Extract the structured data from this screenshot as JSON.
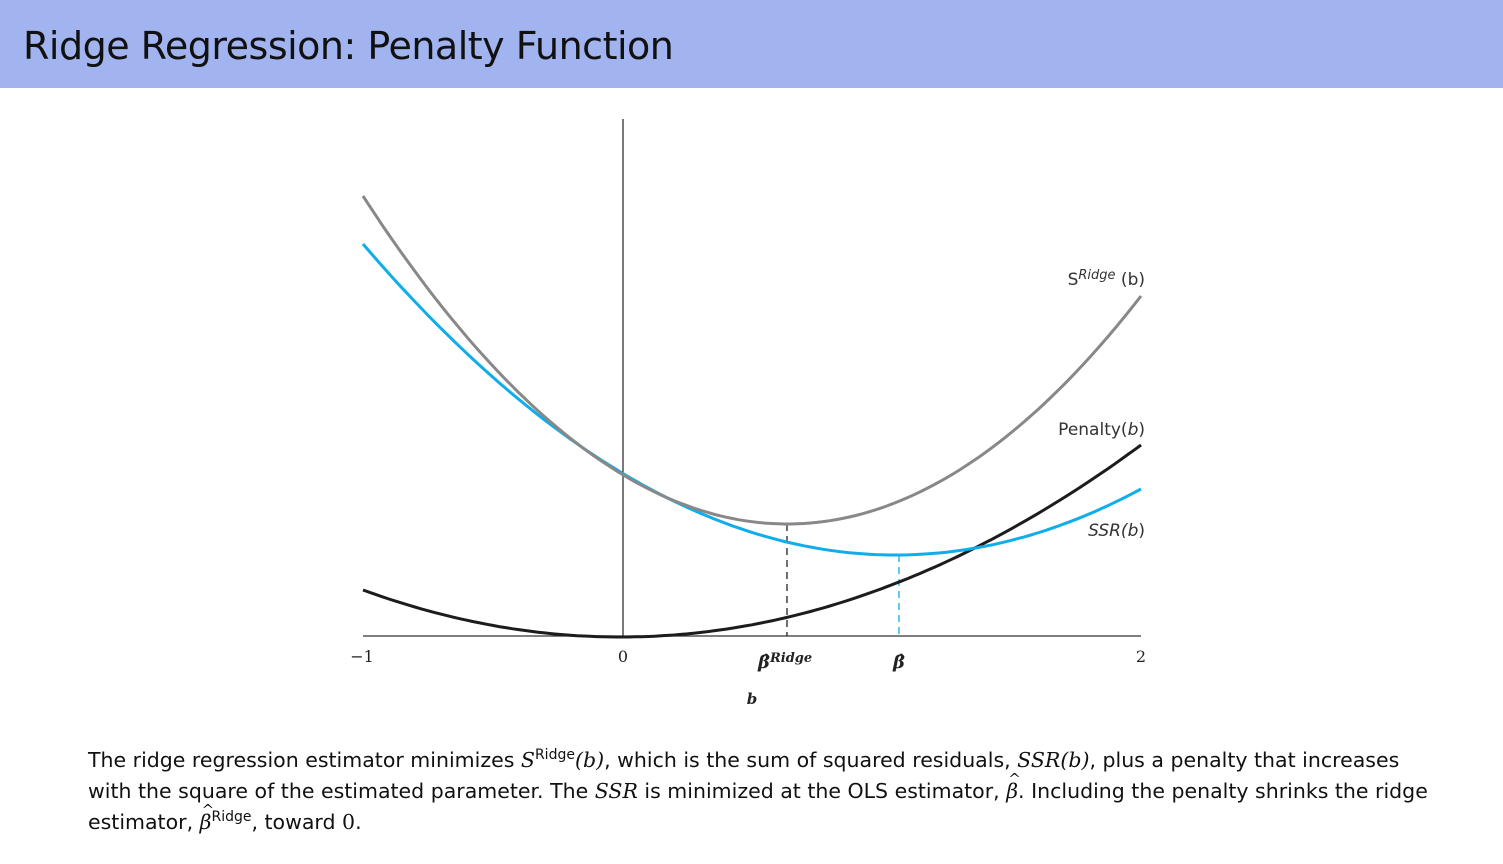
{
  "header": {
    "title": "Ridge Regression: Penalty Function"
  },
  "colors": {
    "header_bg": "#a1b4ef",
    "s_ridge": "#888888",
    "ssr": "#0fadea",
    "penalty": "#1c1c1c",
    "axis": "#333333"
  },
  "diagram": {
    "x_range": [
      -1,
      2
    ],
    "tick_labels": [
      "−1",
      "0",
      "2"
    ],
    "xlabel": "b",
    "marker_ridge": {
      "symbol": "β̂",
      "sup": "Ridge"
    },
    "marker_ols": {
      "symbol": "β̂"
    },
    "curve_labels": {
      "s_ridge": {
        "base": "S",
        "sup": "Ridge",
        "arg": " (b)"
      },
      "penalty": {
        "base": "Penalty(",
        "arg": "b",
        "close": ")"
      },
      "ssr": {
        "base": "SSR(",
        "arg": "b",
        "close": ")"
      }
    }
  },
  "caption": {
    "p1": "The ridge regression estimator minimizes ",
    "s": "S",
    "sup_ridge": "Ridge",
    "p2": "(b)",
    "p3": ", which is the sum of squared residuals, ",
    "ssr_b": "SSR(b)",
    "p4": ", plus a penalty that increases with the square of the estimated parameter. The ",
    "ssr": "SSR",
    "p5": " is minimized at the OLS estimator, ",
    "beta": "β",
    "p6": ". Including the penalty shrinks the ridge estimator, ",
    "beta2": "β",
    "sup_ridge2": "Ridge",
    "p7": ", toward ",
    "zero": "0",
    "p8": "."
  }
}
